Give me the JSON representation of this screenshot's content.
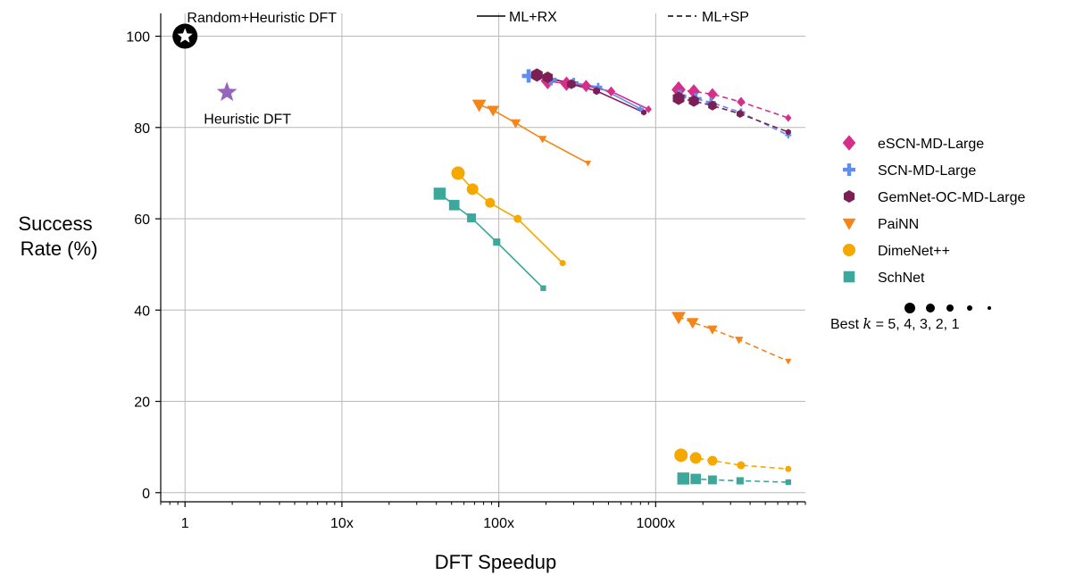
{
  "chart_data": {
    "type": "scatter",
    "xlabel": "DFT Speedup",
    "ylabel_line1": "Success",
    "ylabel_line2": "Rate (%)",
    "x_scale": "log",
    "xlim": [
      0.7,
      9000
    ],
    "ylim": [
      -2,
      105
    ],
    "grid": true,
    "xticks": [
      {
        "value": 1,
        "label": "1"
      },
      {
        "value": 10,
        "label": "10x"
      },
      {
        "value": 100,
        "label": "100x"
      },
      {
        "value": 1000,
        "label": "1000x"
      }
    ],
    "yticks": [
      {
        "value": 0,
        "label": "0"
      },
      {
        "value": 20,
        "label": "20"
      },
      {
        "value": 40,
        "label": "40"
      },
      {
        "value": 60,
        "label": "60"
      },
      {
        "value": 80,
        "label": "80"
      },
      {
        "value": 100,
        "label": "100"
      }
    ],
    "reference_points": [
      {
        "name": "Random+Heuristic DFT",
        "x": 1,
        "y": 100,
        "marker": "star-circle",
        "color": "#000000",
        "label_position": "top"
      },
      {
        "name": "Heuristic DFT",
        "x": 1.85,
        "y": 87.7,
        "marker": "star",
        "color": "#9467bd",
        "label_position": "below"
      }
    ],
    "line_styles": [
      {
        "name": "ML+RX",
        "dash": "solid"
      },
      {
        "name": "ML+SP",
        "dash": "dashed"
      }
    ],
    "series": [
      {
        "name": "eSCN-MD-Large",
        "color": "#d62f8a",
        "marker": "diamond",
        "ml_rx": {
          "x": [
            205,
            270,
            360,
            520,
            900
          ],
          "y": [
            90.2,
            89.6,
            89.1,
            87.9,
            84.0
          ]
        },
        "ml_sp": {
          "x": [
            1400,
            1750,
            2300,
            3500,
            7000
          ],
          "y": [
            88.3,
            87.9,
            87.3,
            85.6,
            82.1
          ]
        }
      },
      {
        "name": "SCN-MD-Large",
        "color": "#5f8ef0",
        "marker": "plus",
        "ml_rx": {
          "x": [
            155,
            215,
            300,
            430,
            800
          ],
          "y": [
            91.3,
            90.5,
            89.8,
            88.9,
            84.1
          ]
        },
        "ml_sp": {
          "x": [
            1420,
            1800,
            2250,
            3500,
            7000
          ],
          "y": [
            86.8,
            86.3,
            85.5,
            83.3,
            78.3
          ]
        }
      },
      {
        "name": "GemNet-OC-MD-Large",
        "color": "#7b1f55",
        "marker": "hexagon",
        "ml_rx": {
          "x": [
            175,
            205,
            290,
            420,
            840
          ],
          "y": [
            91.5,
            91.0,
            89.5,
            88.0,
            83.3
          ]
        },
        "ml_sp": {
          "x": [
            1400,
            1750,
            2300,
            3450,
            7000
          ],
          "y": [
            86.4,
            85.8,
            84.8,
            83.0,
            79.0
          ]
        }
      },
      {
        "name": "PaiNN",
        "color": "#f58518",
        "marker": "triangle-down",
        "ml_rx": {
          "x": [
            75,
            92,
            128,
            190,
            370
          ],
          "y": [
            85.0,
            83.8,
            81.0,
            77.5,
            72.2
          ]
        },
        "ml_sp": {
          "x": [
            1400,
            1720,
            2300,
            3400,
            7000
          ],
          "y": [
            38.5,
            37.3,
            35.8,
            33.5,
            28.8
          ]
        }
      },
      {
        "name": "DimeNet++",
        "color": "#f5a800",
        "marker": "circle",
        "ml_rx": {
          "x": [
            55,
            68,
            88,
            132,
            255
          ],
          "y": [
            70.0,
            66.5,
            63.5,
            60.0,
            50.3
          ]
        },
        "ml_sp": {
          "x": [
            1450,
            1800,
            2300,
            3500,
            7000
          ],
          "y": [
            8.2,
            7.6,
            7.0,
            6.0,
            5.2
          ]
        }
      },
      {
        "name": "SchNet",
        "color": "#3ba89b",
        "marker": "square",
        "ml_rx": {
          "x": [
            42,
            52,
            67,
            97,
            192
          ],
          "y": [
            65.5,
            63.0,
            60.2,
            54.9,
            44.8
          ]
        },
        "ml_sp": {
          "x": [
            1500,
            1800,
            2300,
            3450,
            7000
          ],
          "y": [
            3.1,
            3.0,
            2.8,
            2.6,
            2.3
          ]
        }
      }
    ],
    "size_legend": {
      "prefix": "Best",
      "k_symbol": "k",
      "equals": "=",
      "values": "5, 4, 3, 2, 1"
    }
  }
}
